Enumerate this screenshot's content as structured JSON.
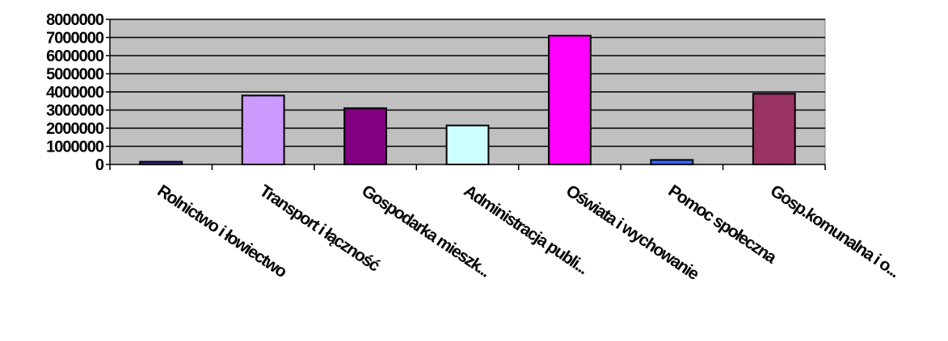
{
  "chart_data": {
    "type": "bar",
    "categories": [
      "Rolnictwo i łowiectwo",
      "Transport i łączność",
      "Gospodarka mieszk...",
      "Administracja publi...",
      "Oświata i wychowanie",
      "Pomoc społeczna",
      "Gosp.komunalna i o..."
    ],
    "values": [
      150000,
      3800000,
      3100000,
      2150000,
      7100000,
      250000,
      3900000
    ],
    "bar_colors": [
      "#3333CC",
      "#CC99FF",
      "#800080",
      "#CCFFFF",
      "#FF00FF",
      "#3366FF",
      "#993366"
    ],
    "ylim": [
      0,
      8000000
    ],
    "y_ticks": [
      "0",
      "1000000",
      "2000000",
      "3000000",
      "4000000",
      "5000000",
      "6000000",
      "7000000",
      "8000000"
    ],
    "plot_background": "#C0C0C0",
    "grid": true,
    "legend": "none"
  }
}
